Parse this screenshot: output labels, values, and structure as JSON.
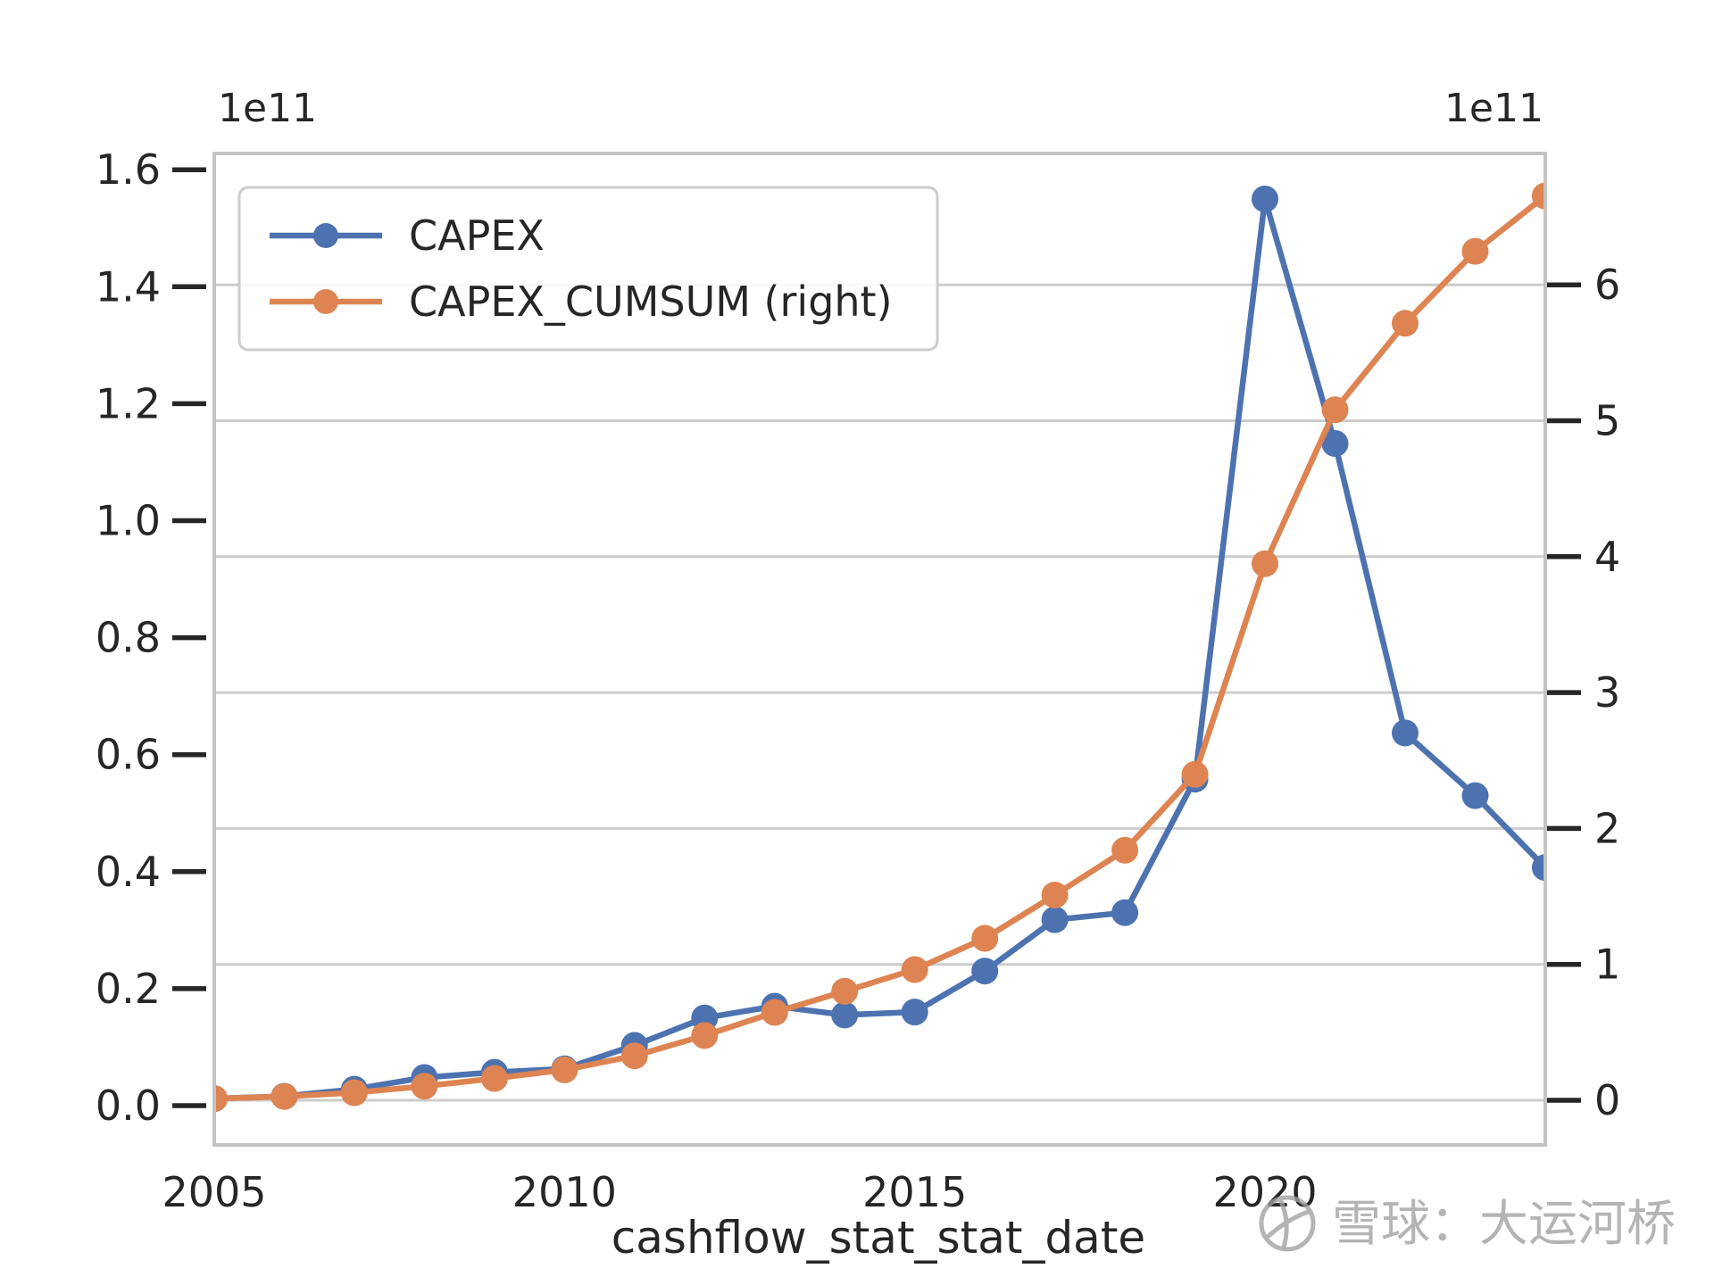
{
  "figure": {
    "background": "#ffffff",
    "watermark": {
      "text": "雪球：大运河桥",
      "logo": "xueqiu-snowball-logo",
      "color": "#a0a0a0"
    }
  },
  "chart_data": {
    "type": "line",
    "title": "",
    "xlabel": "cashflow_stat_stat_date",
    "values_unit": "1e11 (axis offset notation)",
    "x": [
      2005,
      2006,
      2007,
      2008,
      2009,
      2010,
      2011,
      2012,
      2013,
      2014,
      2015,
      2016,
      2017,
      2018,
      2019,
      2020,
      2021,
      2022,
      2023,
      2024
    ],
    "x_tick_labels": [
      "2005",
      "2010",
      "2015",
      "2020"
    ],
    "x_tick_years": [
      2005,
      2010,
      2015,
      2020
    ],
    "series": [
      {
        "name": "CAPEX",
        "axis": "left",
        "color": "#4C72B0",
        "values_1e11": [
          0.012,
          0.016,
          0.028,
          0.048,
          0.057,
          0.063,
          0.103,
          0.15,
          0.17,
          0.155,
          0.16,
          0.23,
          0.318,
          0.33,
          0.558,
          1.55,
          1.132,
          0.637,
          0.53,
          0.407
        ]
      },
      {
        "name": "CAPEX_CUMSUM (right)",
        "axis": "right",
        "color": "#DD8452",
        "values_1e11": [
          0.012,
          0.028,
          0.056,
          0.104,
          0.161,
          0.224,
          0.327,
          0.477,
          0.647,
          0.802,
          0.962,
          1.192,
          1.51,
          1.84,
          2.398,
          3.948,
          5.08,
          5.717,
          6.247,
          6.654
        ]
      }
    ],
    "left_axis": {
      "offset_label": "1e11",
      "tick_values": [
        0,
        0.2,
        0.4,
        0.6,
        0.8,
        1.0,
        1.2,
        1.4,
        1.6
      ],
      "tick_labels": [
        "0.0",
        "0.2",
        "0.4",
        "0.6",
        "0.8",
        "1.0",
        "1.2",
        "1.4",
        "1.6"
      ],
      "range_approx": [
        -0.07,
        1.63
      ]
    },
    "right_axis": {
      "offset_label": "1e11",
      "tick_values": [
        0,
        1,
        2,
        3,
        4,
        5,
        6
      ],
      "tick_labels": [
        "0",
        "1",
        "2",
        "3",
        "4",
        "5",
        "6"
      ],
      "range_approx": [
        -0.33,
        6.97
      ]
    },
    "legend": {
      "position": "upper left"
    },
    "grid": {
      "horizontal": true,
      "source_axis": "right",
      "color": "#cccccc"
    },
    "style": {
      "spine_color": "#c3c3c3",
      "text_color": "#262626",
      "legend_border_color": "#cccccc"
    }
  }
}
